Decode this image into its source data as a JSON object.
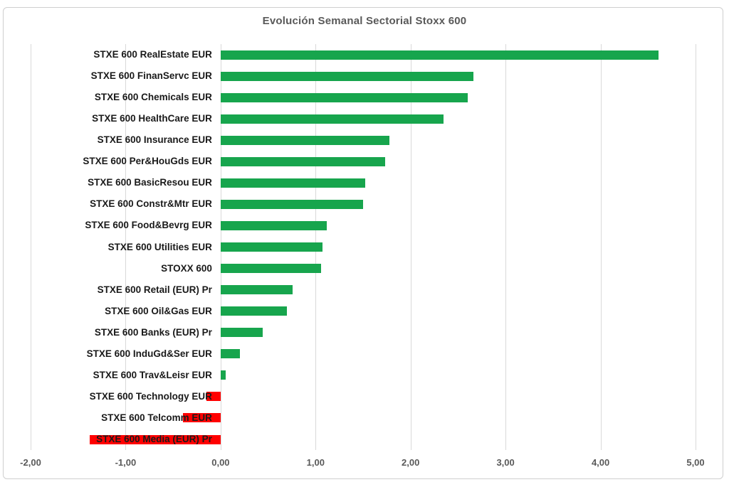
{
  "chart_data": {
    "type": "bar",
    "orientation": "horizontal",
    "title": "Evolución Semanal Sectorial Stoxx 600",
    "categories": [
      "STXE 600 RealEstate EUR",
      "STXE 600 FinanServc EUR",
      "STXE 600 Chemicals EUR",
      "STXE 600 HealthCare EUR",
      "STXE 600 Insurance EUR",
      "STXE 600 Per&HouGds EUR",
      "STXE 600 BasicResou EUR",
      "STXE 600 Constr&Mtr EUR",
      "STXE 600 Food&Bevrg EUR",
      "STXE 600 Utilities EUR",
      "STOXX 600",
      "STXE 600 Retail (EUR) Pr",
      "STXE 600 Oil&Gas EUR",
      "STXE 600 Banks (EUR) Pr",
      "STXE 600 InduGd&Ser EUR",
      "STXE 600 Trav&Leisr EUR",
      "STXE 600 Technology EUR",
      "STXE 600 Telcomm EUR",
      "STXE 600 Media (EUR) Pr"
    ],
    "values": [
      4.61,
      2.66,
      2.6,
      2.35,
      1.78,
      1.73,
      1.52,
      1.5,
      1.12,
      1.07,
      1.06,
      0.76,
      0.7,
      0.44,
      0.2,
      0.05,
      -0.15,
      -0.4,
      -1.38
    ],
    "xlim": [
      -2,
      5
    ],
    "x_tick_values": [
      -2,
      -1,
      0,
      1,
      2,
      3,
      4,
      5
    ],
    "x_tick_labels": [
      "-2,00",
      "-1,00",
      "0,00",
      "1,00",
      "2,00",
      "3,00",
      "4,00",
      "5,00"
    ],
    "grid": true,
    "legend": "none",
    "colors": {
      "positive_bar": "#17A54D",
      "negative_bar": "#FF0000",
      "title_text": "#595959",
      "axis_tick_text": "#595959",
      "gridline": "#D9D9D9",
      "category_text": "#1A1A1A",
      "frame_border": "#CFCFCF"
    }
  }
}
